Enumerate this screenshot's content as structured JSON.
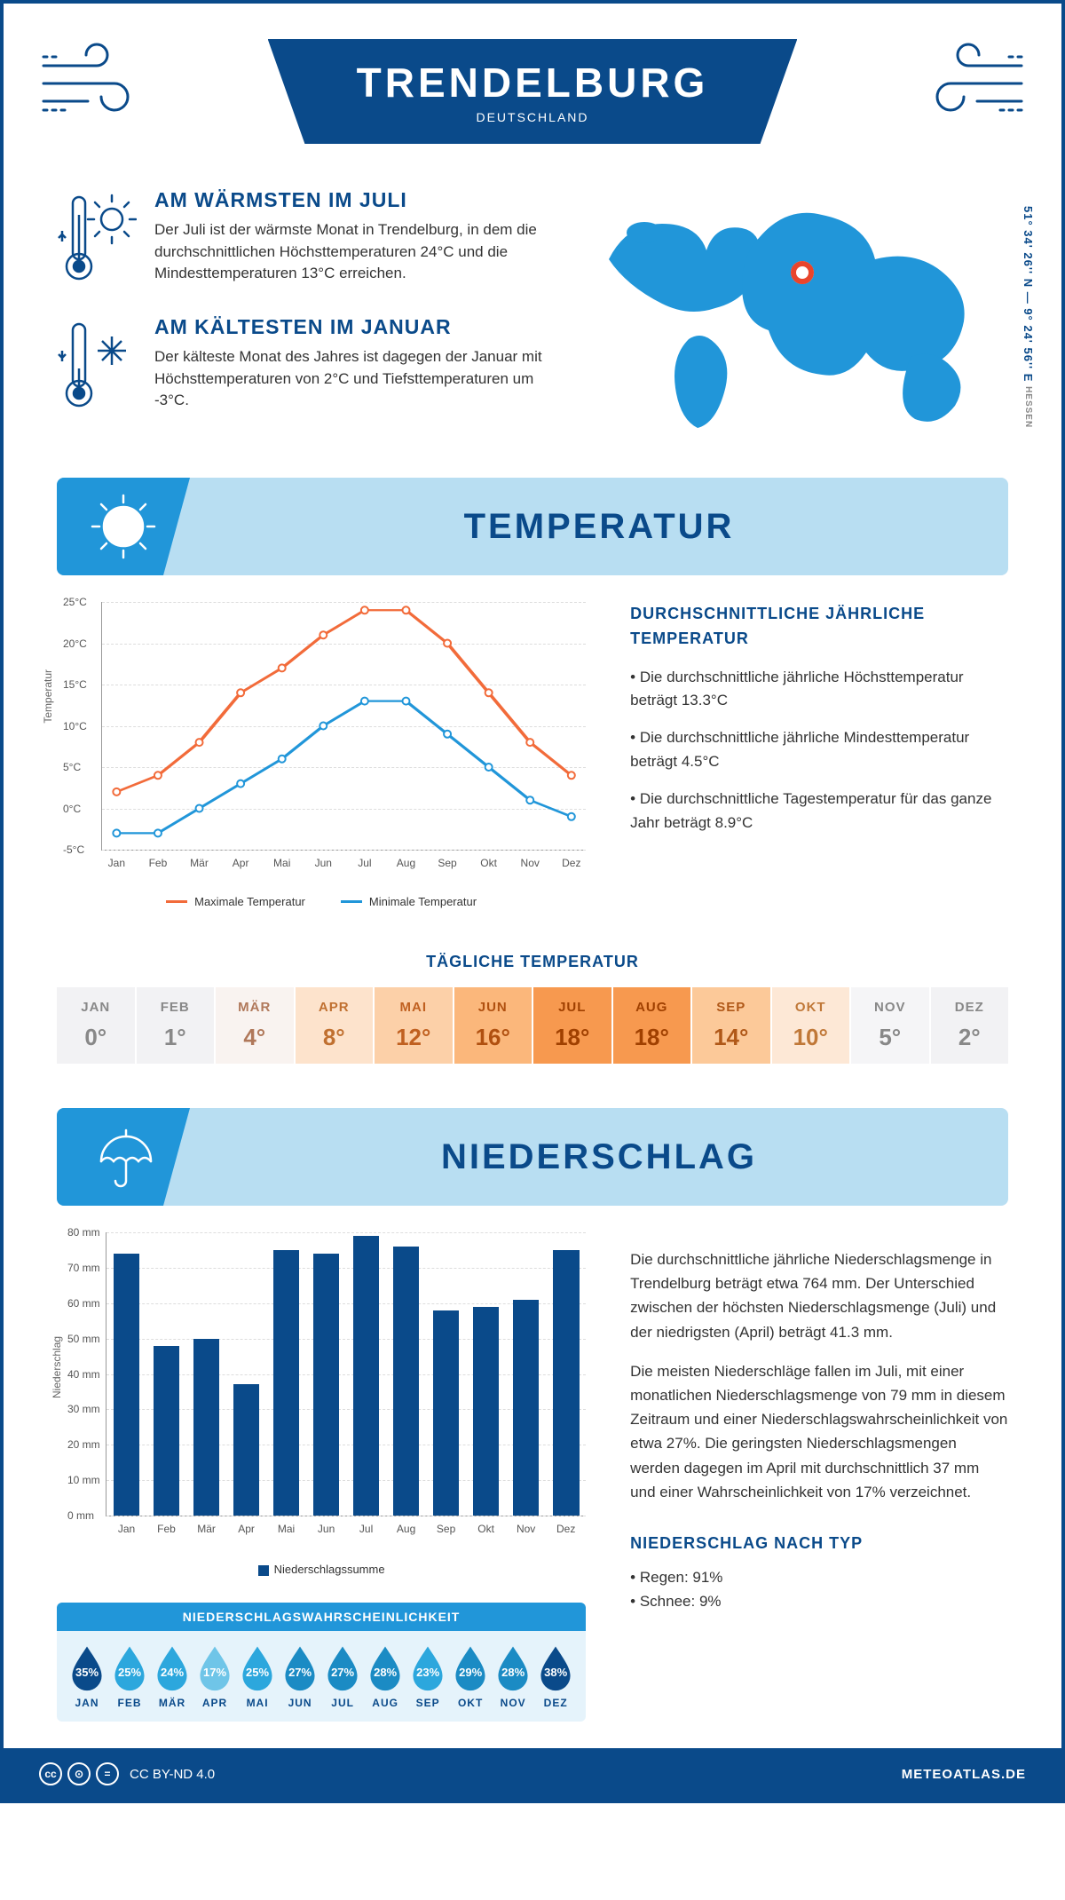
{
  "header": {
    "title": "TRENDELBURG",
    "subtitle": "DEUTSCHLAND"
  },
  "coords": {
    "text": "51° 34' 26'' N — 9° 24' 56'' E",
    "region": "HESSEN"
  },
  "warm": {
    "title": "AM WÄRMSTEN IM JULI",
    "text": "Der Juli ist der wärmste Monat in Trendelburg, in dem die durchschnittlichen Höchsttemperaturen 24°C und die Mindesttemperaturen 13°C erreichen."
  },
  "cold": {
    "title": "AM KÄLTESTEN IM JANUAR",
    "text": "Der kälteste Monat des Jahres ist dagegen der Januar mit Höchsttemperaturen von 2°C und Tiefsttemperaturen um -3°C."
  },
  "temp_section": {
    "title": "TEMPERATUR"
  },
  "temp_chart": {
    "type": "line",
    "months": [
      "Jan",
      "Feb",
      "Mär",
      "Apr",
      "Mai",
      "Jun",
      "Jul",
      "Aug",
      "Sep",
      "Okt",
      "Nov",
      "Dez"
    ],
    "max": [
      2,
      4,
      8,
      14,
      17,
      21,
      24,
      24,
      20,
      14,
      8,
      4
    ],
    "min": [
      -3,
      -3,
      0,
      3,
      6,
      10,
      13,
      13,
      9,
      5,
      1,
      -1
    ],
    "ylim": [
      -5,
      25
    ],
    "yticks": [
      -5,
      0,
      5,
      10,
      15,
      20,
      25
    ],
    "ytick_labels": [
      "-5°C",
      "0°C",
      "5°C",
      "10°C",
      "15°C",
      "20°C",
      "25°C"
    ],
    "ylabel": "Temperatur",
    "max_color": "#f26b3a",
    "min_color": "#2196d9",
    "grid_color": "#dddddd",
    "legend_max": "Maximale Temperatur",
    "legend_min": "Minimale Temperatur"
  },
  "temp_text": {
    "title": "DURCHSCHNITTLICHE JÄHRLICHE TEMPERATUR",
    "p1": "• Die durchschnittliche jährliche Höchsttemperatur beträgt 13.3°C",
    "p2": "• Die durchschnittliche jährliche Mindesttemperatur beträgt 4.5°C",
    "p3": "• Die durchschnittliche Tagestemperatur für das ganze Jahr beträgt 8.9°C"
  },
  "daily": {
    "title": "TÄGLICHE TEMPERATUR",
    "months": [
      "JAN",
      "FEB",
      "MÄR",
      "APR",
      "MAI",
      "JUN",
      "JUL",
      "AUG",
      "SEP",
      "OKT",
      "NOV",
      "DEZ"
    ],
    "values": [
      "0°",
      "1°",
      "4°",
      "8°",
      "12°",
      "16°",
      "18°",
      "18°",
      "14°",
      "10°",
      "5°",
      "2°"
    ],
    "bg_colors": [
      "#f2f2f4",
      "#f2f2f4",
      "#f9f3f0",
      "#fde3cc",
      "#fcd0a8",
      "#fbb77b",
      "#f7994f",
      "#f7994f",
      "#fcc999",
      "#fde8d6",
      "#f5f5f7",
      "#f2f2f4"
    ],
    "text_colors": [
      "#888",
      "#888",
      "#b0785a",
      "#c07030",
      "#c06020",
      "#b05010",
      "#a04000",
      "#a04000",
      "#b05818",
      "#c07838",
      "#888",
      "#888"
    ]
  },
  "precip_section": {
    "title": "NIEDERSCHLAG"
  },
  "precip_chart": {
    "type": "bar",
    "months": [
      "Jan",
      "Feb",
      "Mär",
      "Apr",
      "Mai",
      "Jun",
      "Jul",
      "Aug",
      "Sep",
      "Okt",
      "Nov",
      "Dez"
    ],
    "values": [
      74,
      48,
      50,
      37,
      75,
      74,
      79,
      76,
      58,
      59,
      61,
      75
    ],
    "ylim": [
      0,
      80
    ],
    "yticks": [
      0,
      10,
      20,
      30,
      40,
      50,
      60,
      70,
      80
    ],
    "ytick_labels": [
      "0 mm",
      "10 mm",
      "20 mm",
      "30 mm",
      "40 mm",
      "50 mm",
      "60 mm",
      "70 mm",
      "80 mm"
    ],
    "ylabel": "Niederschlag",
    "bar_color": "#0a4a8a",
    "legend": "Niederschlagssumme"
  },
  "precip_text": {
    "p1": "Die durchschnittliche jährliche Niederschlagsmenge in Trendelburg beträgt etwa 764 mm. Der Unterschied zwischen der höchsten Niederschlagsmenge (Juli) und der niedrigsten (April) beträgt 41.3 mm.",
    "p2": "Die meisten Niederschläge fallen im Juli, mit einer monatlichen Niederschlagsmenge von 79 mm in diesem Zeitraum und einer Niederschlagswahrscheinlichkeit von etwa 27%. Die geringsten Niederschlagsmengen werden dagegen im April mit durchschnittlich 37 mm und einer Wahrscheinlichkeit von 17% verzeichnet.",
    "type_title": "NIEDERSCHLAG NACH TYP",
    "type1": "• Regen: 91%",
    "type2": "• Schnee: 9%"
  },
  "prob": {
    "title": "NIEDERSCHLAGSWAHRSCHEINLICHKEIT",
    "months": [
      "JAN",
      "FEB",
      "MÄR",
      "APR",
      "MAI",
      "JUN",
      "JUL",
      "AUG",
      "SEP",
      "OKT",
      "NOV",
      "DEZ"
    ],
    "values": [
      "35%",
      "25%",
      "24%",
      "17%",
      "25%",
      "27%",
      "27%",
      "28%",
      "23%",
      "29%",
      "28%",
      "38%"
    ],
    "colors": [
      "#0a4a8a",
      "#2ca7dd",
      "#2ca7dd",
      "#6fc5e8",
      "#2ca7dd",
      "#1b8bc4",
      "#1b8bc4",
      "#1b8bc4",
      "#2ca7dd",
      "#1b8bc4",
      "#1b8bc4",
      "#0a4a8a"
    ]
  },
  "footer": {
    "license": "CC BY-ND 4.0",
    "site": "METEOATLAS.DE"
  }
}
